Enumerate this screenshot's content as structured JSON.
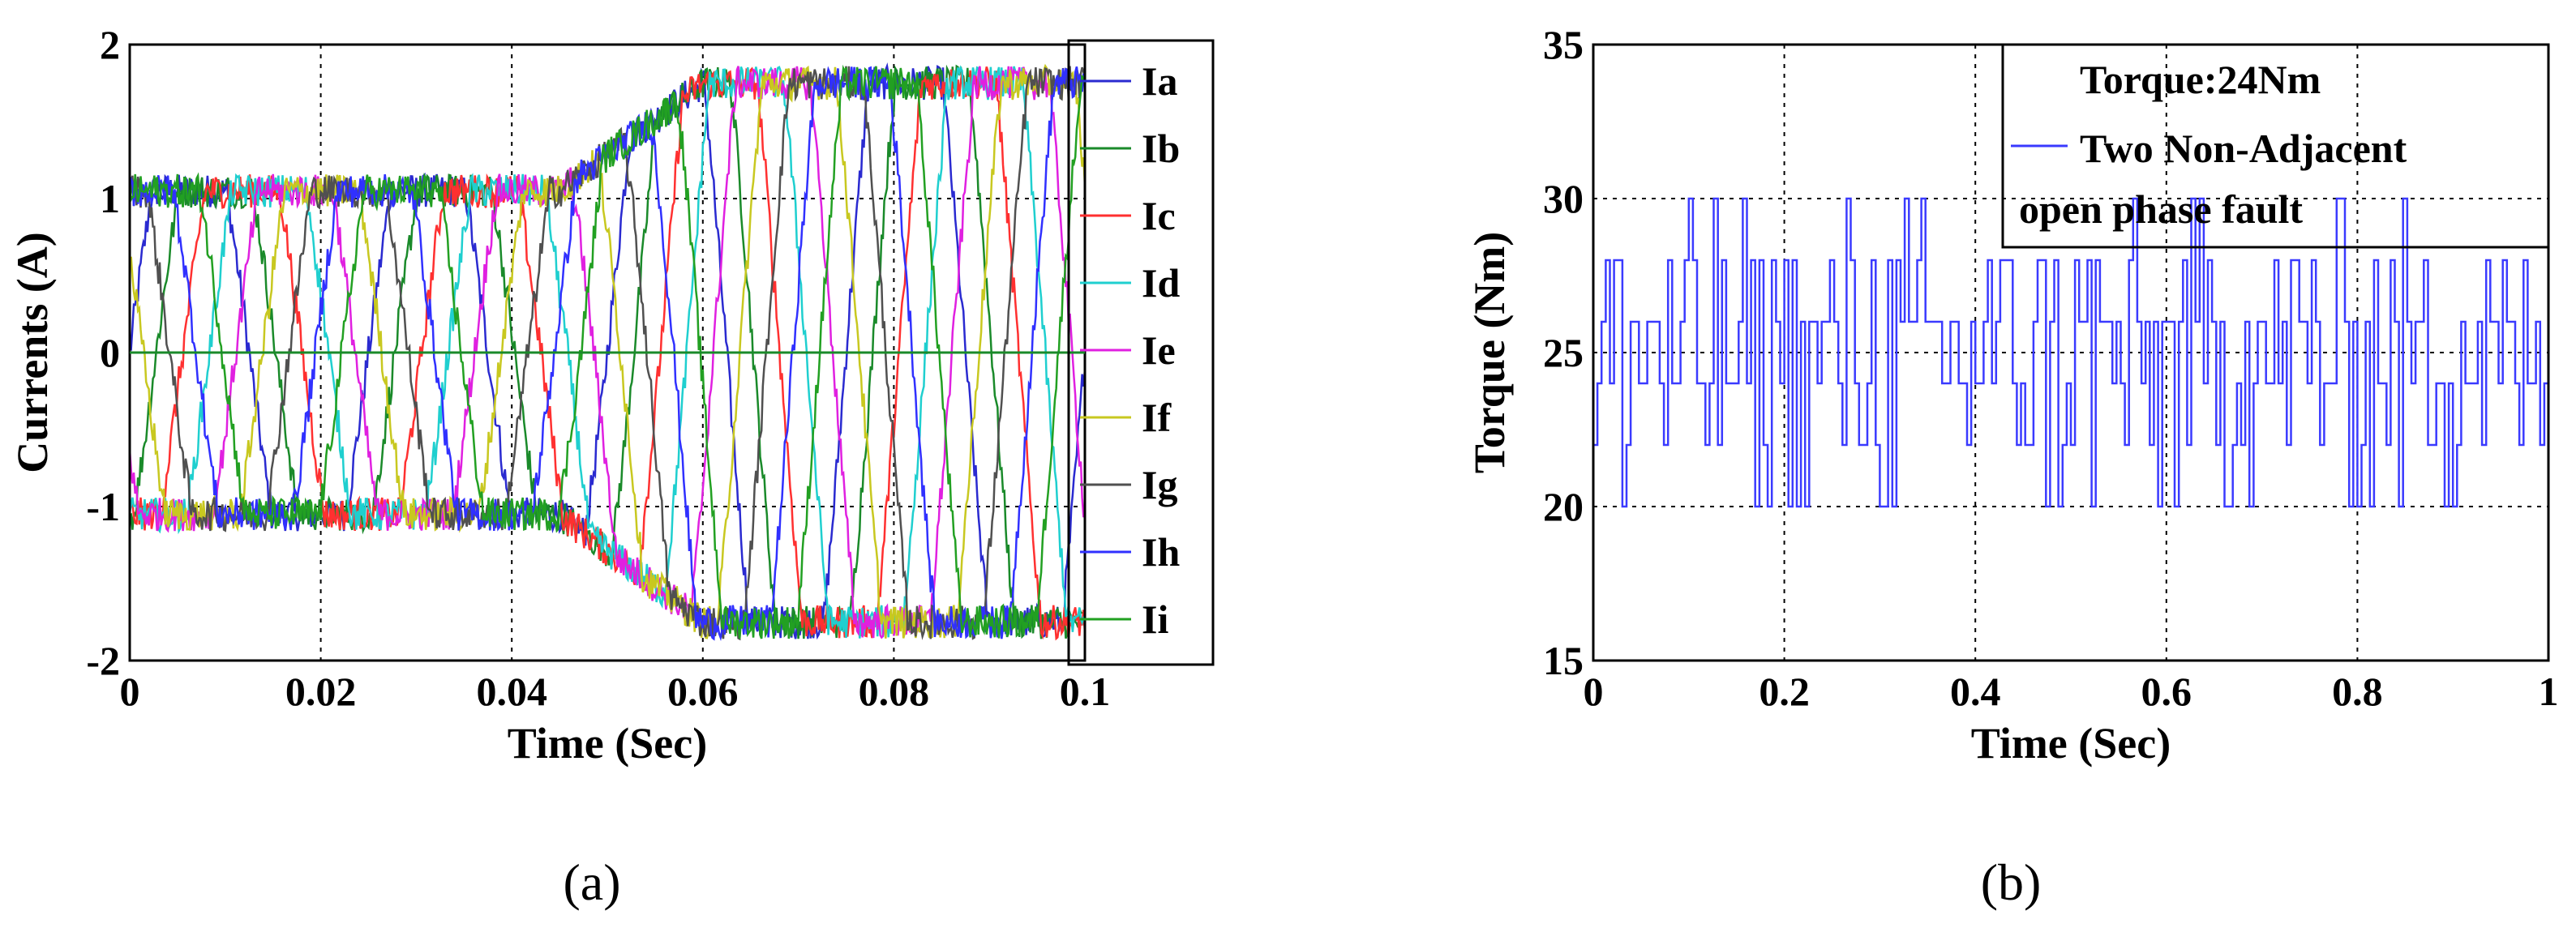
{
  "chart_data": [
    {
      "type": "line",
      "panel_label": "(a)",
      "xlabel": "Time (Sec)",
      "ylabel": "Currents (A)",
      "xlim": [
        0,
        0.1
      ],
      "ylim": [
        -2,
        2
      ],
      "xticks": [
        "0",
        "0.02",
        "0.04",
        "0.06",
        "0.08",
        "0.1"
      ],
      "yticks": [
        "-2",
        "-1",
        "0",
        "1",
        "2"
      ],
      "grid": true,
      "legend_position": "outside-right",
      "series": [
        {
          "name": "Ia",
          "color": "#2a2ad0",
          "phase": 0
        },
        {
          "name": "Ib",
          "color": "#1a8a2a",
          "phase": 40
        },
        {
          "name": "Ic",
          "color": "#ff3030",
          "phase": 80
        },
        {
          "name": "Id",
          "color": "#1fcfcf",
          "phase": 120
        },
        {
          "name": "Ie",
          "color": "#e020e0",
          "phase": 160
        },
        {
          "name": "If",
          "color": "#c8c820",
          "phase": 200
        },
        {
          "name": "Ig",
          "color": "#505050",
          "phase": 240
        },
        {
          "name": "Ih",
          "color": "#3030ff",
          "phase": 280
        },
        {
          "name": "Ii",
          "color": "#22a022",
          "phase": 320
        }
      ],
      "waveform": {
        "healthy_amplitude": 1.05,
        "fault_amplitude": 1.75,
        "fault_start": 0.045,
        "fault_full": 0.06,
        "period": 0.025
      }
    },
    {
      "type": "line",
      "panel_label": "(b)",
      "xlabel": "Time (Sec)",
      "ylabel": "Torque (Nm)",
      "xlim": [
        0,
        1
      ],
      "ylim": [
        15,
        35
      ],
      "xticks": [
        "0",
        "0.2",
        "0.4",
        "0.6",
        "0.8",
        "1"
      ],
      "yticks": [
        "15",
        "20",
        "25",
        "30",
        "35"
      ],
      "grid": true,
      "legend_position": "top-right",
      "legend_title": "Torque:24Nm",
      "series": [
        {
          "name": "Two Non-Adjacent open phase fault",
          "name_line1": "Two Non-Adjacent",
          "name_line2": "open phase fault",
          "color": "#3a3aff"
        }
      ],
      "torque_levels": [
        20,
        22,
        24,
        26,
        28,
        30
      ],
      "torque_mean": 24.5
    }
  ]
}
